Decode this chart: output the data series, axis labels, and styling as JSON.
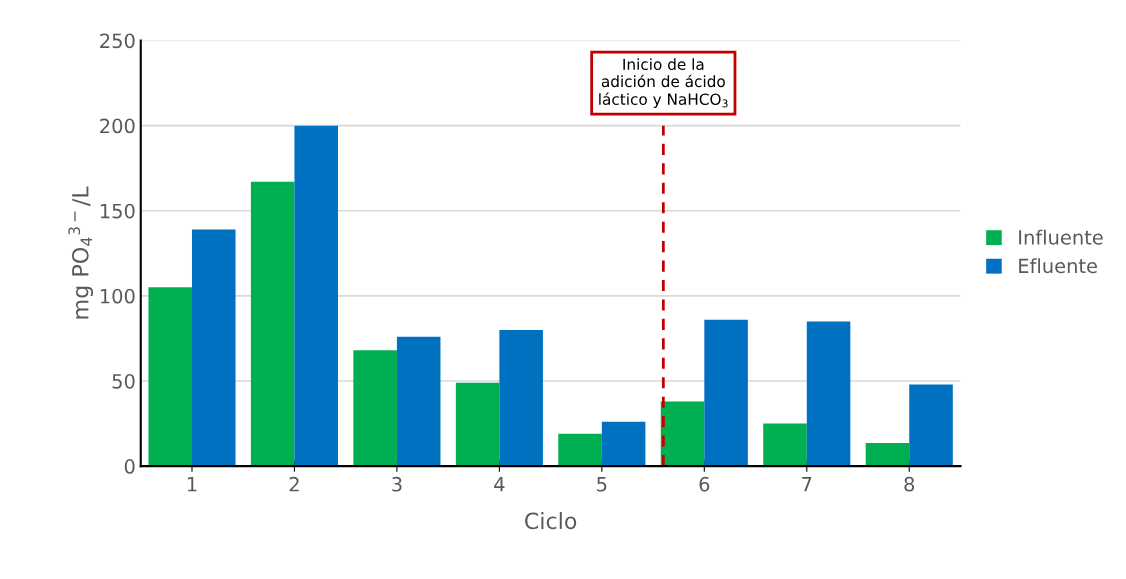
{
  "chart_data": {
    "type": "bar",
    "xlabel": "Ciclo",
    "ylabel": "mg PO$_{4}$$^{3−}$/L",
    "x": [
      1,
      2,
      3,
      4,
      5,
      6,
      7,
      8
    ],
    "xlim": [
      0.5,
      8.5
    ],
    "xticks": [
      1,
      2,
      3,
      4,
      5,
      6,
      7,
      8
    ],
    "ylim": [
      0,
      250
    ],
    "yticks": [
      0,
      50,
      100,
      150,
      200,
      250
    ],
    "grid": "y",
    "legend": "right",
    "series": [
      {
        "name": "Influente",
        "color": "#00b050",
        "values": [
          105,
          167,
          68,
          49,
          19,
          38,
          25,
          13.5
        ]
      },
      {
        "name": "Efluente",
        "color": "#0070c0",
        "values": [
          139,
          200,
          76,
          80,
          26,
          86,
          85,
          48
        ]
      }
    ],
    "ref_lines": [
      {
        "axis": "x",
        "value": 5.6,
        "label": "Inicio de la\nadición de ácido\nláctico y NaHCO$_{3}$",
        "color": "#c00000",
        "line_style": "dashed"
      }
    ]
  }
}
